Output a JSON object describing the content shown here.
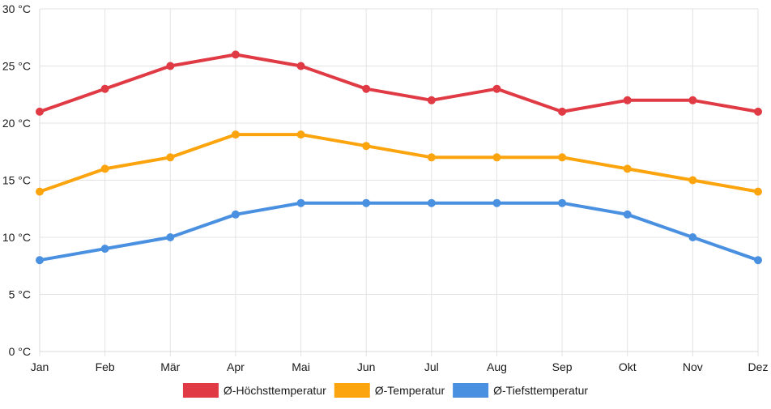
{
  "chart_data": {
    "type": "line",
    "title": "",
    "xlabel": "",
    "ylabel": "",
    "categories": [
      "Jan",
      "Feb",
      "Mär",
      "Apr",
      "Mai",
      "Jun",
      "Jul",
      "Aug",
      "Sep",
      "Okt",
      "Nov",
      "Dez"
    ],
    "y_unit": "°C",
    "ylim": [
      0,
      30
    ],
    "y_ticks": [
      0,
      5,
      10,
      15,
      20,
      25,
      30
    ],
    "y_tick_labels": [
      "0 °C",
      "5 °C",
      "10 °C",
      "15 °C",
      "20 °C",
      "25 °C",
      "30 °C"
    ],
    "grid": true,
    "legend_position": "bottom",
    "series": [
      {
        "name": "Ø-Höchsttemperatur",
        "color": "#e03a45",
        "values": [
          21,
          23,
          25,
          26,
          25,
          23,
          22,
          23,
          21,
          22,
          22,
          21
        ]
      },
      {
        "name": "Ø-Temperatur",
        "color": "#fba40e",
        "values": [
          14,
          16,
          17,
          19,
          19,
          18,
          17,
          17,
          17,
          16,
          15,
          14
        ]
      },
      {
        "name": "Ø-Tiefsttemperatur",
        "color": "#4a90e0",
        "values": [
          8,
          9,
          10,
          12,
          13,
          13,
          13,
          13,
          13,
          12,
          10,
          8
        ]
      }
    ]
  }
}
